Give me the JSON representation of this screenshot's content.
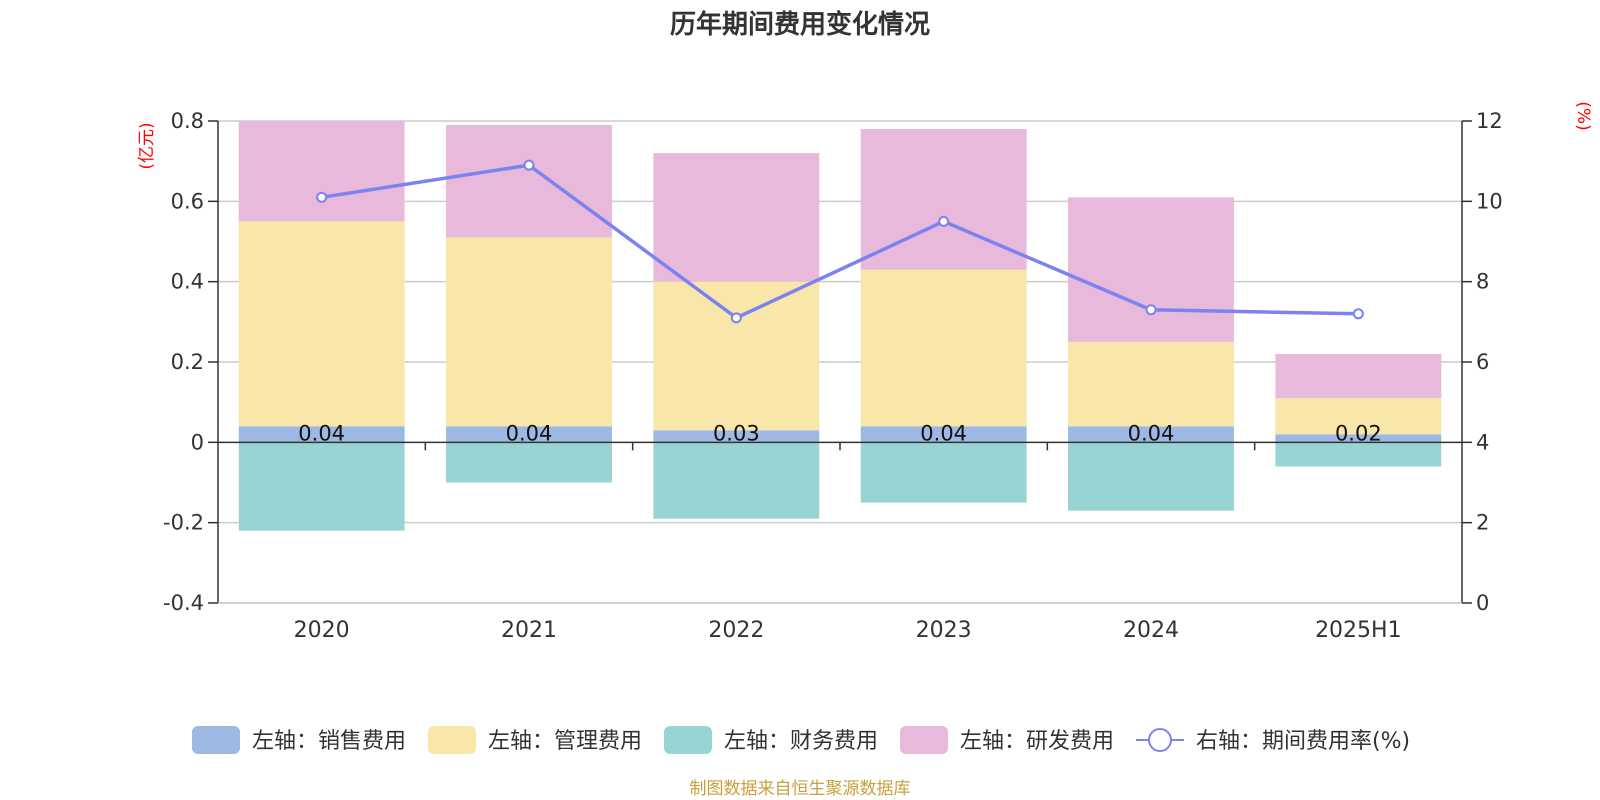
{
  "chart_data": {
    "type": "bar",
    "title": "历年期间费用变化情况",
    "categories": [
      "2020",
      "2021",
      "2022",
      "2023",
      "2024",
      "2025H1"
    ],
    "left_axis": {
      "unit": "(亿元)",
      "ylim": [
        -0.4,
        0.8
      ],
      "ticks": [
        -0.4,
        -0.2,
        0,
        0.2,
        0.4,
        0.6,
        0.8
      ],
      "tick_labels": [
        "-0.4",
        "-0.2",
        "0",
        "0.2",
        "0.4",
        "0.6",
        "0.8"
      ]
    },
    "right_axis": {
      "unit": "(%)",
      "ylim": [
        0,
        12
      ],
      "ticks": [
        0,
        2,
        4,
        6,
        8,
        10,
        12
      ],
      "tick_labels": [
        "0",
        "2",
        "4",
        "6",
        "8",
        "10",
        "12"
      ]
    },
    "grid": true,
    "legend_position": "bottom",
    "series": [
      {
        "name": "左轴：销售费用",
        "axis": "left",
        "kind": "bar",
        "stack": "main",
        "color": "#9db8e2",
        "values": [
          0.04,
          0.04,
          0.03,
          0.04,
          0.04,
          0.02
        ],
        "labels": [
          "0.04",
          "0.04",
          "0.03",
          "0.04",
          "0.04",
          "0.02"
        ]
      },
      {
        "name": "左轴：管理费用",
        "axis": "left",
        "kind": "bar",
        "stack": "main",
        "color": "#f8e7a8",
        "values": [
          0.51,
          0.47,
          0.37,
          0.39,
          0.21,
          0.09
        ]
      },
      {
        "name": "左轴：财务费用",
        "axis": "left",
        "kind": "bar",
        "stack": "main",
        "color": "#98d4d3",
        "values": [
          -0.22,
          -0.1,
          -0.19,
          -0.15,
          -0.17,
          -0.06
        ]
      },
      {
        "name": "左轴：研发费用",
        "axis": "left",
        "kind": "bar",
        "stack": "main",
        "color": "#e8b9da",
        "values": [
          0.25,
          0.28,
          0.32,
          0.35,
          0.36,
          0.11
        ]
      },
      {
        "name": "右轴：期间费用率(%)",
        "axis": "right",
        "kind": "line",
        "color": "#7b83f0",
        "values": [
          10.1,
          10.9,
          7.1,
          9.5,
          7.3,
          7.2
        ]
      }
    ]
  },
  "footer": {
    "source": "制图数据来自恒生聚源数据库"
  }
}
